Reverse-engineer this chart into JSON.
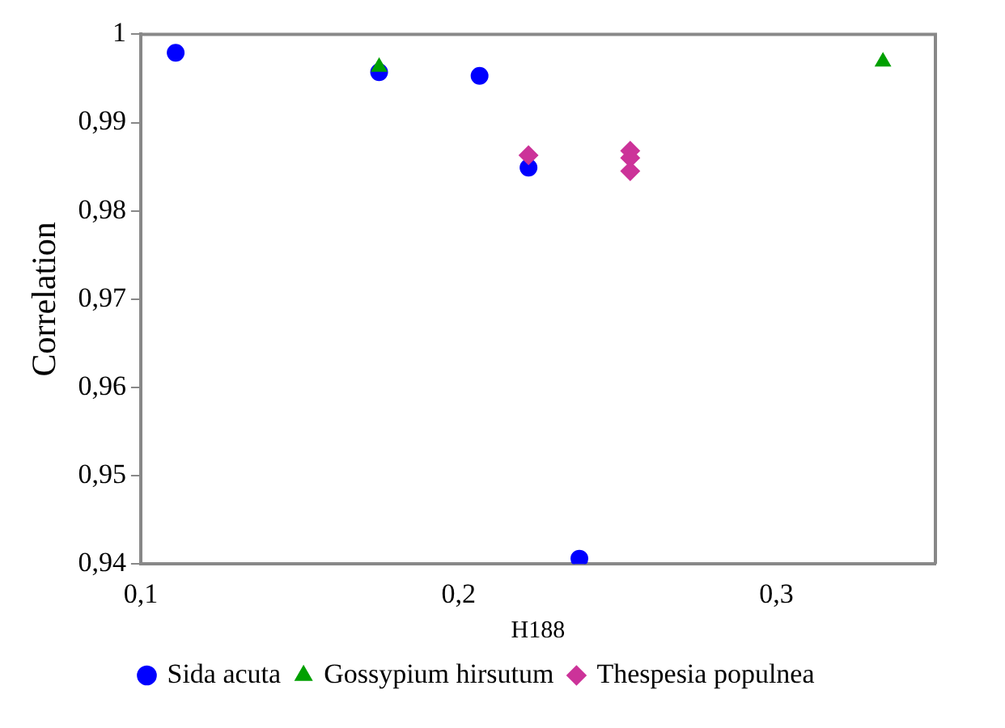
{
  "chart_data": {
    "type": "scatter",
    "xlabel": "H188",
    "ylabel": "Correlation",
    "xlim": [
      0.1,
      0.35
    ],
    "xticks": [
      {
        "value": 0.1,
        "label": "0,1"
      },
      {
        "value": 0.2,
        "label": "0,2"
      },
      {
        "value": 0.3,
        "label": "0,3"
      }
    ],
    "ylim": [
      0.94,
      1
    ],
    "yticks": [
      {
        "value": 0.94,
        "label": "0,94"
      },
      {
        "value": 0.95,
        "label": "0,95"
      },
      {
        "value": 0.96,
        "label": "0,96"
      },
      {
        "value": 0.97,
        "label": "0,97"
      },
      {
        "value": 0.98,
        "label": "0,98"
      },
      {
        "value": 0.99,
        "label": "0,99"
      },
      1
    ],
    "grid": false,
    "legend": "bottom",
    "series": [
      {
        "name": "Sida acuta",
        "color": "#0000ff",
        "marker": "circle",
        "x": [
          0.111,
          0.175,
          0.2066,
          0.222,
          0.238
        ],
        "values": [
          0.9979,
          0.9957,
          0.9953,
          0.9849,
          0.9406
        ]
      },
      {
        "name": "Gossypium hirsutum",
        "color": "#00a000",
        "marker": "triangle",
        "x": [
          0.175,
          0.3335
        ],
        "values": [
          0.9963,
          0.9969
        ]
      },
      {
        "name": "Thespesia populnea",
        "color": "#cc3399",
        "marker": "diamond",
        "x": [
          0.222,
          0.254,
          0.254,
          0.254
        ],
        "values": [
          0.9863,
          0.9868,
          0.986,
          0.9845
        ]
      }
    ]
  }
}
